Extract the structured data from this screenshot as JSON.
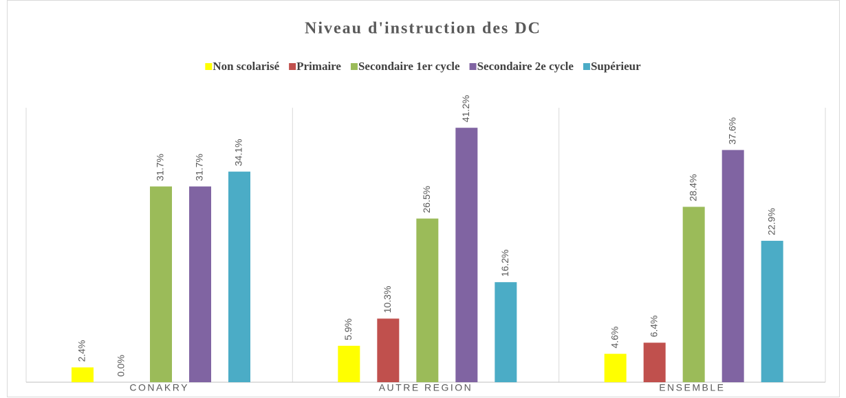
{
  "chart_data": {
    "type": "bar",
    "title": "Niveau d'instruction des DC",
    "categories": [
      "CONAKRY",
      "AUTRE REGION",
      "ENSEMBLE"
    ],
    "series": [
      {
        "name": "Non scolarisé",
        "color": "#ffff00",
        "values": [
          2.4,
          5.9,
          4.6
        ],
        "value_labels": [
          "2.4%",
          "5.9%",
          "4.6%"
        ]
      },
      {
        "name": "Primaire",
        "color": "#c0504d",
        "values": [
          0.0,
          10.3,
          6.4
        ],
        "value_labels": [
          "0.0%",
          "10.3%",
          "6.4%"
        ]
      },
      {
        "name": "Secondaire 1er cycle",
        "color": "#9bbb59",
        "values": [
          31.7,
          26.5,
          28.4
        ],
        "value_labels": [
          "31.7%",
          "26.5%",
          "28.4%"
        ]
      },
      {
        "name": "Secondaire 2e cycle",
        "color": "#8064a2",
        "values": [
          31.7,
          41.2,
          37.6
        ],
        "value_labels": [
          "31.7%",
          "41.2%",
          "37.6%"
        ]
      },
      {
        "name": "Supérieur",
        "color": "#4bacc6",
        "values": [
          34.1,
          16.2,
          22.9
        ],
        "value_labels": [
          "34.1%",
          "16.2%",
          "22.9%"
        ]
      }
    ],
    "legend": "top"
  }
}
